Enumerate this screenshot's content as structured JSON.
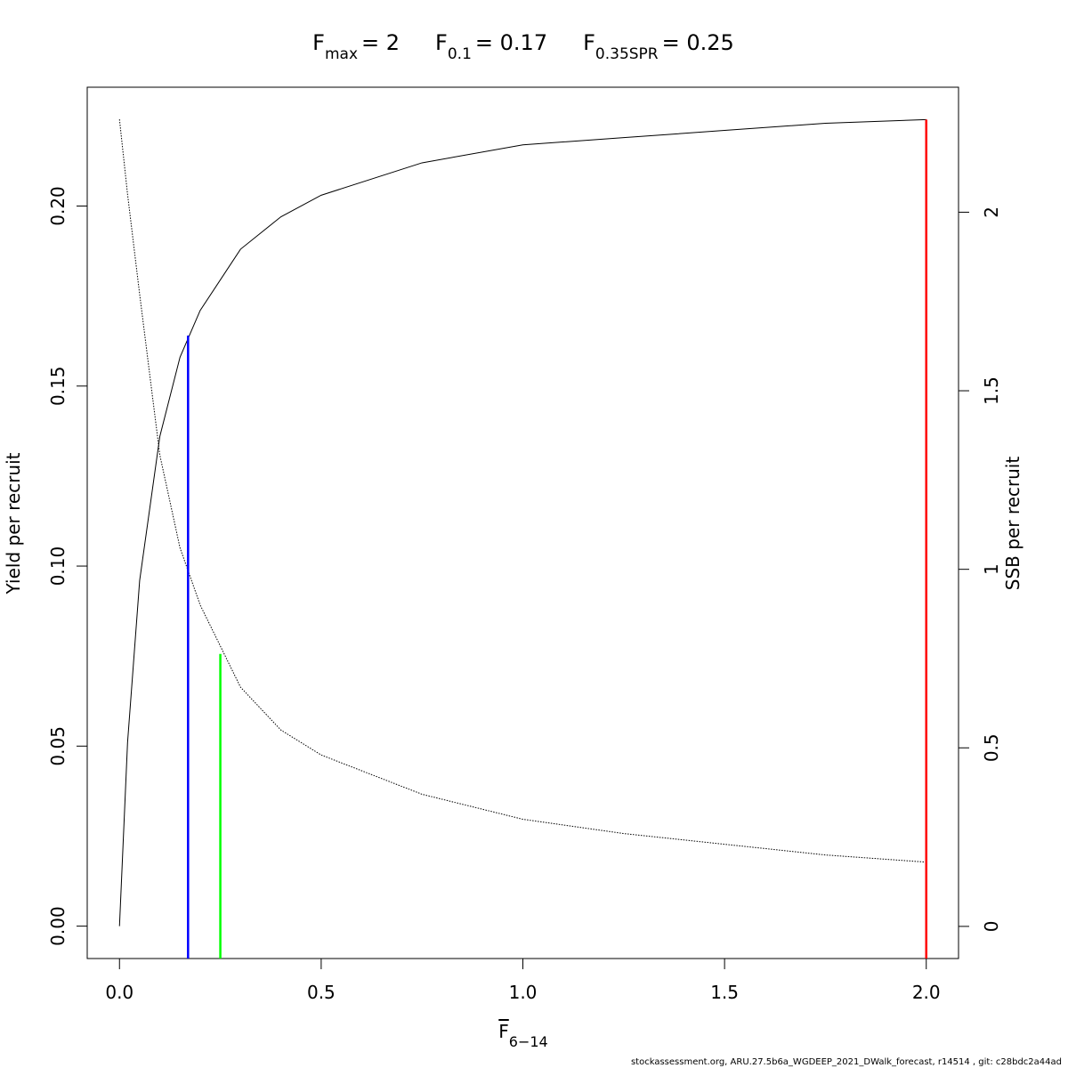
{
  "chart_data": {
    "type": "line",
    "title": [
      {
        "symbol": "F",
        "subscript": "max",
        "text": "= 2"
      },
      {
        "symbol": "F",
        "subscript": "0.1",
        "text": "= 0.17"
      },
      {
        "symbol": "F",
        "subscript": "0.35SPR",
        "text": "= 0.25"
      }
    ],
    "xlabel": {
      "symbol": "F",
      "subscript": "6−14"
    },
    "ylabel": "Yield per recruit",
    "y2label": "SSB per recruit",
    "footer": "stockassessment.org, ARU.27.5b6a_WGDEEP_2021_DWalk_forecast, r14514 , git: c28bdc2a44ad",
    "x": [
      0,
      0.02,
      0.05,
      0.1,
      0.15,
      0.2,
      0.3,
      0.4,
      0.5,
      0.75,
      1,
      1.25,
      1.5,
      1.75,
      2
    ],
    "series": [
      {
        "color": "#000000",
        "dash": "solid",
        "values": [
          0,
          0.051,
          0.096,
          0.136,
          0.158,
          0.171,
          0.188,
          0.197,
          0.203,
          0.212,
          0.217,
          0.219,
          0.221,
          0.223,
          0.224
        ]
      },
      {
        "color": "#000000",
        "dash": "dotted",
        "axis": "y2",
        "values": [
          2.26,
          2.05,
          1.77,
          1.32,
          1.06,
          0.9,
          0.67,
          0.55,
          0.48,
          0.37,
          0.3,
          0.26,
          0.23,
          0.2,
          0.18
        ]
      }
    ],
    "reference_lines": [
      {
        "x": 0.17,
        "top": 0.164,
        "color": "#0000ff"
      },
      {
        "x": 0.25,
        "top": 0.763,
        "axis": "y2",
        "color": "#00ff00"
      },
      {
        "x": 2,
        "top": 0.224,
        "color": "#ff0000"
      }
    ],
    "xlim": [
      -0.08,
      2.08
    ],
    "ylim": [
      -0.009,
      0.233
    ],
    "y2lim": [
      -0.09,
      2.35
    ],
    "xticks": [
      {
        "value": 0,
        "label": "0.0"
      },
      0.5,
      {
        "value": 1,
        "label": "1.0"
      },
      1.5,
      {
        "value": 2,
        "label": "2.0"
      }
    ],
    "yticks": [
      {
        "value": 0,
        "label": "0.00"
      },
      0.05,
      {
        "value": 0.1,
        "label": "0.10"
      },
      0.15,
      {
        "value": 0.2,
        "label": "0.20"
      }
    ],
    "y2ticks": [
      0,
      0.5,
      1,
      1.5,
      2
    ],
    "grid": false
  }
}
